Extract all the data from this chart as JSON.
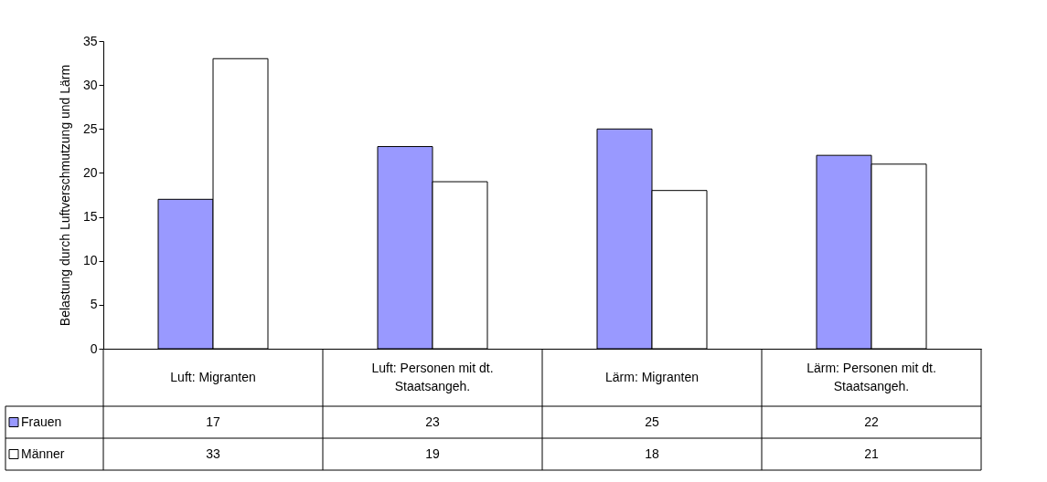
{
  "chart_data": {
    "type": "bar",
    "ylabel": "Belastung durch Luftverschmutzung und Lärm",
    "categories": [
      "Luft: Migranten",
      "Luft: Personen mit dt. Staatsangeh.",
      "Lärm: Migranten",
      "Lärm: Personen mit dt. Staatsangeh."
    ],
    "series": [
      {
        "name": "Frauen",
        "color": "#9999ff",
        "values": [
          17,
          23,
          25,
          22
        ]
      },
      {
        "name": "Männer",
        "color": "#ffffff",
        "values": [
          33,
          19,
          18,
          21
        ]
      }
    ],
    "ylim": [
      0,
      35
    ],
    "yticks": [
      0,
      5,
      10,
      15,
      20,
      25,
      30,
      35
    ],
    "grid": false,
    "legend": "bottom left",
    "data_labels": true
  }
}
